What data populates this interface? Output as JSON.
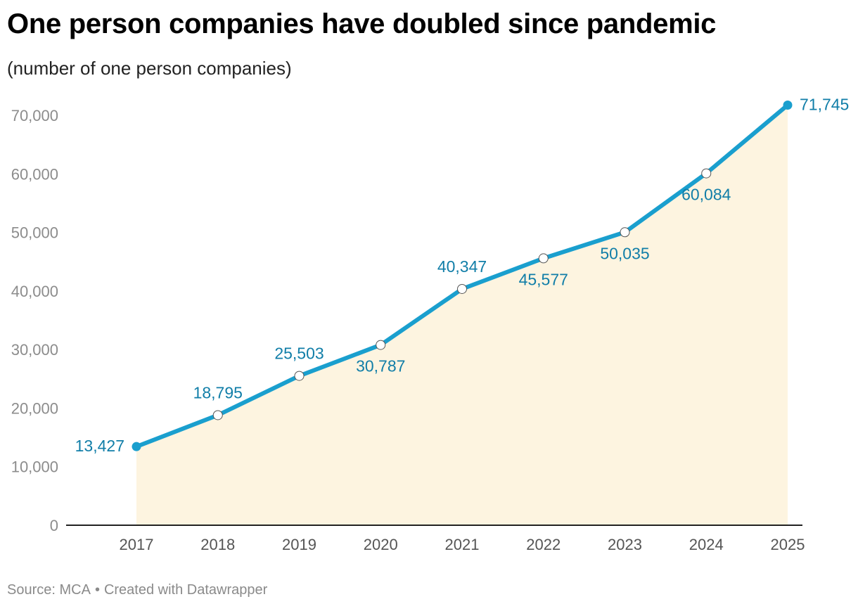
{
  "header": {
    "title": "One person companies have doubled since pandemic",
    "subtitle": "(number of one person companies)"
  },
  "footer": {
    "source": "Source: MCA",
    "separator": "•",
    "credit": "Created with Datawrapper"
  },
  "colors": {
    "line": "#1a9fce",
    "label": "#117ea8",
    "area": "#fdf4e0",
    "axis": "#222222",
    "tick": "#8c8c8c"
  },
  "chart_data": {
    "type": "line",
    "title": "One person companies have doubled since pandemic",
    "subtitle": "(number of one person companies)",
    "xlabel": "",
    "ylabel": "",
    "categories": [
      "2017",
      "2018",
      "2019",
      "2020",
      "2021",
      "2022",
      "2023",
      "2024",
      "2025"
    ],
    "series": [
      {
        "values": [
          13427,
          18795,
          25503,
          30787,
          40347,
          45577,
          50035,
          60084,
          71745
        ],
        "labels": [
          "13,427",
          "18,795",
          "25,503",
          "30,787",
          "40,347",
          "45,577",
          "50,035",
          "60,084",
          "71,745"
        ]
      }
    ],
    "label_side": [
      "left",
      "above",
      "above",
      "below",
      "above",
      "below",
      "below",
      "below",
      "right"
    ],
    "ylim": [
      0,
      70000
    ],
    "yticks": [
      0,
      10000,
      20000,
      30000,
      40000,
      50000,
      60000,
      70000
    ],
    "ytick_labels": [
      "0",
      "10,000",
      "20,000",
      "30,000",
      "40,000",
      "50,000",
      "60,000",
      "70,000"
    ],
    "area_fill": true,
    "grid": false,
    "legend": "none"
  }
}
